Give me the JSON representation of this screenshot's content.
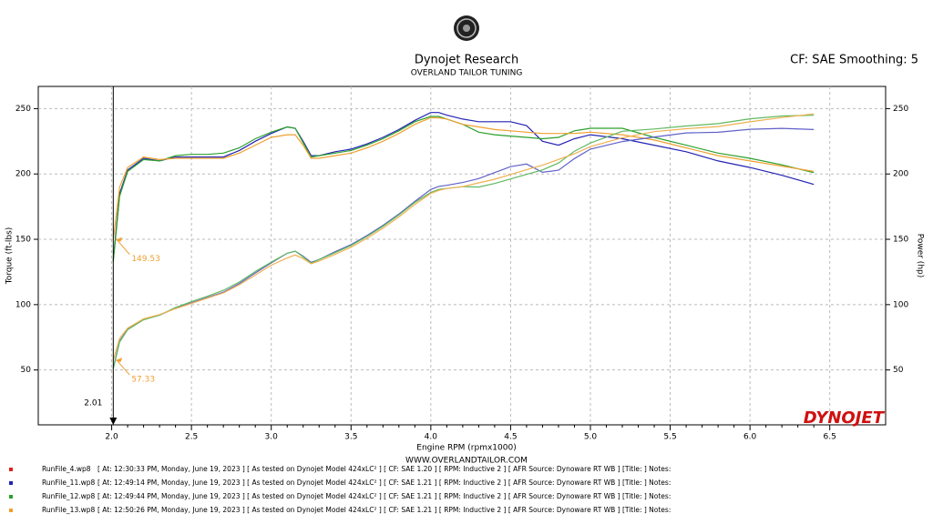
{
  "chart_data": {
    "type": "line",
    "title": "Dynojet Research",
    "subtitle": "OVERLAND TAILOR TUNING",
    "settings_text": "CF: SAE Smoothing: 5",
    "x_label": "Engine RPM (rpmx1000)",
    "y_label": "Torque (ft-lbs)",
    "y2_label": "Power (hp)",
    "website": "WWW.OVERLANDTAILOR.COM",
    "brand": "DYNOJET",
    "grid": true,
    "xlim": [
      1.54,
      6.85
    ],
    "ylim": [
      8,
      267
    ],
    "y2lim": [
      8,
      267
    ],
    "xticks": [
      {
        "value": 2.0,
        "label": "2.0"
      },
      2.5,
      {
        "value": 3.0,
        "label": "3.0"
      },
      3.5,
      {
        "value": 4.0,
        "label": "4.0"
      },
      4.5,
      {
        "value": 5.0,
        "label": "5.0"
      },
      5.5,
      {
        "value": 6.0,
        "label": "6.0"
      },
      6.5
    ],
    "yticks": [
      50,
      100,
      150,
      200,
      250
    ],
    "y2ticks": [
      50,
      100,
      150,
      200,
      250
    ],
    "cursor": {
      "x": 2.01,
      "torque": 149.53,
      "power": 57.33,
      "color": "#f0a030"
    },
    "x": [
      2.01,
      2.05,
      2.1,
      2.2,
      2.3,
      2.4,
      2.5,
      2.6,
      2.7,
      2.8,
      2.9,
      3.0,
      3.1,
      3.15,
      3.2,
      3.25,
      3.3,
      3.4,
      3.5,
      3.6,
      3.7,
      3.8,
      3.9,
      4.0,
      4.05,
      4.1,
      4.2,
      4.3,
      4.4,
      4.5,
      4.6,
      4.7,
      4.8,
      4.9,
      5.0,
      5.2,
      5.4,
      5.6,
      5.8,
      6.0,
      6.2,
      6.4
    ],
    "series": [
      {
        "name": "RunFile_11.wp8",
        "color": "#2323b4",
        "values": [
          134,
          185,
          203,
          212,
          210,
          213,
          213,
          213,
          213,
          218,
          225,
          231,
          236,
          235,
          225,
          214,
          214,
          217,
          219,
          223,
          228,
          234,
          241,
          247,
          247,
          245,
          242,
          240,
          240,
          240,
          237,
          225,
          222,
          227,
          230,
          227,
          222,
          217,
          210,
          205,
          199,
          192
        ]
      },
      {
        "name": "RunFile_12.wp8",
        "color": "#2ca02c",
        "values": [
          133,
          183,
          202,
          211,
          210,
          214,
          215,
          215,
          216,
          220,
          227,
          232,
          236,
          235,
          224,
          213,
          214,
          216,
          218,
          222,
          227,
          233,
          240,
          244,
          244,
          242,
          238,
          232,
          230,
          229,
          228,
          227,
          228,
          233,
          235,
          235,
          228,
          222,
          216,
          212,
          207,
          201
        ]
      },
      {
        "name": "RunFile_13.wp8",
        "color": "#f0a030",
        "values": [
          149.53,
          190,
          205,
          213,
          211,
          212,
          212,
          212,
          212,
          216,
          222,
          228,
          230,
          230,
          222,
          212,
          212,
          214,
          216,
          220,
          225,
          231,
          238,
          243,
          243,
          242,
          238,
          236,
          234,
          233,
          232,
          231,
          231,
          231,
          232,
          230,
          226,
          220,
          214,
          210,
          206,
          202
        ]
      },
      {
        "name": "RunFile_11.wp8",
        "color": "#6060c8",
        "axis": "y2",
        "values": [
          51.3,
          72.2,
          81.2,
          88.8,
          92.0,
          97.3,
          101.4,
          105.4,
          109.5,
          116.2,
          124.2,
          131.9,
          139.3,
          140.9,
          137.1,
          132.4,
          134.5,
          140.5,
          145.9,
          152.9,
          160.6,
          169.3,
          179.0,
          188.1,
          190.5,
          191.3,
          193.5,
          196.5,
          201.1,
          205.6,
          207.6,
          201.3,
          202.9,
          211.8,
          219.0,
          224.8,
          228.3,
          231.4,
          231.9,
          234.2,
          234.9,
          234.0
        ]
      },
      {
        "name": "RunFile_12.wp8",
        "color": "#60b860",
        "axis": "y2",
        "values": [
          50.9,
          71.4,
          80.8,
          88.4,
          92.0,
          97.8,
          102.3,
          106.4,
          111.0,
          117.3,
          125.3,
          132.5,
          139.3,
          140.9,
          136.5,
          131.8,
          134.5,
          139.8,
          145.3,
          152.2,
          159.9,
          168.6,
          178.2,
          185.8,
          188.2,
          188.9,
          190.3,
          190.0,
          192.7,
          196.2,
          199.7,
          203.1,
          208.4,
          217.4,
          223.7,
          232.7,
          234.4,
          236.7,
          238.5,
          242.2,
          244.4,
          244.9
        ]
      },
      {
        "name": "RunFile_13.wp8",
        "color": "#f0b050",
        "axis": "y2",
        "values": [
          57.33,
          74.2,
          82.0,
          89.2,
          92.4,
          96.9,
          100.9,
          105.0,
          109.0,
          115.2,
          122.6,
          130.2,
          135.7,
          138.0,
          135.3,
          131.2,
          133.3,
          138.5,
          143.9,
          150.8,
          158.5,
          167.1,
          176.7,
          185.1,
          187.4,
          188.9,
          190.3,
          193.2,
          196.0,
          199.6,
          203.2,
          206.7,
          211.1,
          215.5,
          220.9,
          227.7,
          232.4,
          234.6,
          236.3,
          239.9,
          243.2,
          246.0
        ]
      }
    ],
    "legend": [
      {
        "name": "RunFile_4.wp8",
        "color": "#e02020",
        "text": "[ At:  12:30:33 PM, Monday, June 19, 2023 ]  [ As tested on Dynojet Model 424xLC² ]  [ CF: SAE 1.20 ]  [ RPM: Inductive 2 ]  [ AFR Source: Dynoware RT WB ]  [Title: ]   Notes:"
      },
      {
        "name": "RunFile_11.wp8",
        "color": "#2323b4",
        "text": "[ At:  12:49:14 PM, Monday, June 19, 2023 ]  [ As tested on Dynojet Model 424xLC² ]  [ CF: SAE 1.21 ]  [ RPM: Inductive 2 ]  [ AFR Source: Dynoware RT WB ]  [Title: ]   Notes:"
      },
      {
        "name": "RunFile_12.wp8",
        "color": "#2ca02c",
        "text": "[ At:  12:49:44 PM, Monday, June 19, 2023 ]  [ As tested on Dynojet Model 424xLC² ]  [ CF: SAE 1.21 ]  [ RPM: Inductive 2 ]  [ AFR Source: Dynoware RT WB ]  [Title: ]   Notes:"
      },
      {
        "name": "RunFile_13.wp8",
        "color": "#f0a030",
        "text": "[ At:  12:50:26 PM, Monday, June 19, 2023 ]  [ As tested on Dynojet Model 424xLC² ]  [ CF: SAE 1.21 ]  [ RPM: Inductive 2 ]  [ AFR Source: Dynoware RT WB ]  [Title: ]   Notes:"
      }
    ]
  }
}
